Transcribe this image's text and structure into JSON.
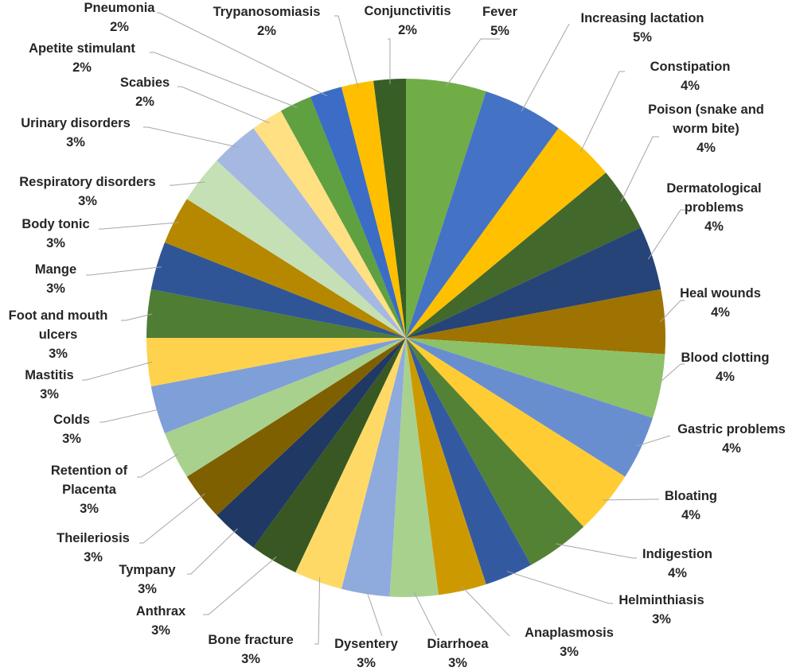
{
  "chart_data": {
    "type": "pie",
    "title": "",
    "slices": [
      {
        "label": "Fever",
        "pct_label": "5%",
        "value": 5,
        "color": "#70ad47"
      },
      {
        "label": "Increasing lactation",
        "pct_label": "5%",
        "value": 5,
        "color": "#4472c4"
      },
      {
        "label": "Constipation",
        "pct_label": "4%",
        "value": 4,
        "color": "#ffc000"
      },
      {
        "label": "Poison (snake and worm bite)",
        "pct_label": "4%",
        "value": 4,
        "color": "#43682b"
      },
      {
        "label": "Dermatological problems",
        "pct_label": "4%",
        "value": 4,
        "color": "#264478"
      },
      {
        "label": "Heal wounds",
        "pct_label": "4%",
        "value": 4,
        "color": "#9e7301"
      },
      {
        "label": "Blood clotting",
        "pct_label": "4%",
        "value": 4,
        "color": "#8cc168"
      },
      {
        "label": "Gastric problems",
        "pct_label": "4%",
        "value": 4,
        "color": "#698ed0"
      },
      {
        "label": "Bloating",
        "pct_label": "4%",
        "value": 4,
        "color": "#ffcd33"
      },
      {
        "label": "Indigestion",
        "pct_label": "4%",
        "value": 4,
        "color": "#548235"
      },
      {
        "label": "Helminthiasis",
        "pct_label": "3%",
        "value": 3,
        "color": "#335aa1"
      },
      {
        "label": "Anaplasmosis",
        "pct_label": "3%",
        "value": 3,
        "color": "#cc9a00"
      },
      {
        "label": "Diarrhoea",
        "pct_label": "3%",
        "value": 3,
        "color": "#a9d18e"
      },
      {
        "label": "Dysentery",
        "pct_label": "3%",
        "value": 3,
        "color": "#8faadc"
      },
      {
        "label": "Bone fracture",
        "pct_label": "3%",
        "value": 3,
        "color": "#ffd966"
      },
      {
        "label": "Anthrax",
        "pct_label": "3%",
        "value": 3,
        "color": "#385723"
      },
      {
        "label": "Tympany",
        "pct_label": "3%",
        "value": 3,
        "color": "#203864"
      },
      {
        "label": "Theileriosis",
        "pct_label": "3%",
        "value": 3,
        "color": "#7f6000"
      },
      {
        "label": "Retention of Placenta",
        "pct_label": "3%",
        "value": 3,
        "color": "#a9d18e"
      },
      {
        "label": "Colds",
        "pct_label": "3%",
        "value": 3,
        "color": "#7f9fd8"
      },
      {
        "label": "Mastitis",
        "pct_label": "3%",
        "value": 3,
        "color": "#ffd24d"
      },
      {
        "label": "Foot and mouth ulcers",
        "pct_label": "3%",
        "value": 3,
        "color": "#4e7d33"
      },
      {
        "label": "Mange",
        "pct_label": "3%",
        "value": 3,
        "color": "#2f5597"
      },
      {
        "label": "Body tonic",
        "pct_label": "3%",
        "value": 3,
        "color": "#b58800"
      },
      {
        "label": "Respiratory disorders",
        "pct_label": "3%",
        "value": 3,
        "color": "#c5e0b4"
      },
      {
        "label": "Urinary disorders",
        "pct_label": "3%",
        "value": 3,
        "color": "#a4b8e2"
      },
      {
        "label": "Scabies",
        "pct_label": "2%",
        "value": 2,
        "color": "#ffe083"
      },
      {
        "label": "Apetite stimulant",
        "pct_label": "2%",
        "value": 2,
        "color": "#5fa040"
      },
      {
        "label": "Pneumonia",
        "pct_label": "2%",
        "value": 2,
        "color": "#3b6cc6"
      },
      {
        "label": "Trypanosomiasis",
        "pct_label": "2%",
        "value": 2,
        "color": "#ffbf00"
      },
      {
        "label": "Conjunctivitis",
        "pct_label": "2%",
        "value": 2,
        "color": "#375e25"
      }
    ]
  }
}
